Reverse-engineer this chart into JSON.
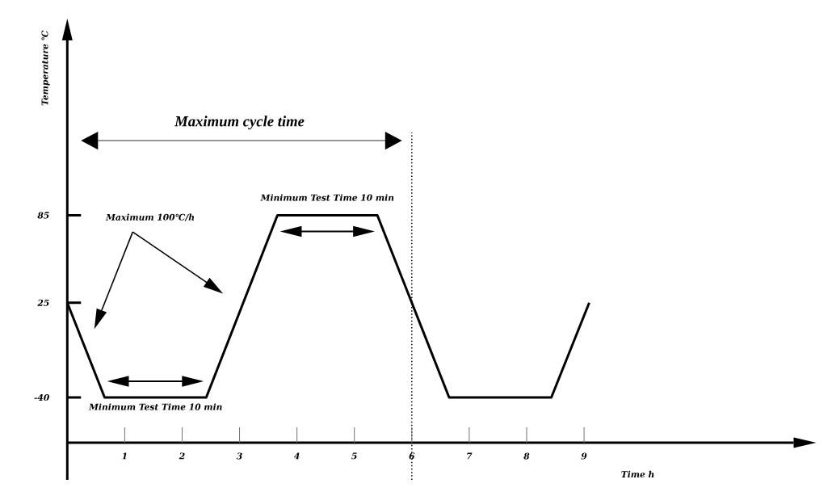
{
  "chart_data": {
    "type": "line",
    "xlabel": "Time h",
    "ylabel": "Temperature ℃",
    "x": [
      0,
      0.65,
      2.42,
      3.66,
      5.4,
      6.65,
      8.43,
      9.09
    ],
    "series": [
      {
        "color": "#000000",
        "values": [
          25,
          -40,
          -40,
          85,
          85,
          -40,
          -40,
          25
        ]
      }
    ],
    "xlim": [
      0,
      12.65
    ],
    "ylim": [
      -96.5,
      205
    ],
    "xticks": [
      1,
      2,
      3,
      4,
      5,
      6,
      7,
      8,
      9
    ],
    "yticks": [
      -40,
      25,
      85
    ],
    "ref_lines": [
      {
        "axis": "x",
        "value": 6,
        "color": "#000000",
        "line_style": "dotted"
      }
    ],
    "annotations": [
      "Maximum cycle time",
      {
        "text": "Minimum Test Time 10 min",
        "x": 4.53,
        "y": 85
      },
      "Maximum 100℃/h",
      {
        "text": "Minimum Test Time 10 min",
        "x": 1.54,
        "y": -40
      }
    ]
  }
}
